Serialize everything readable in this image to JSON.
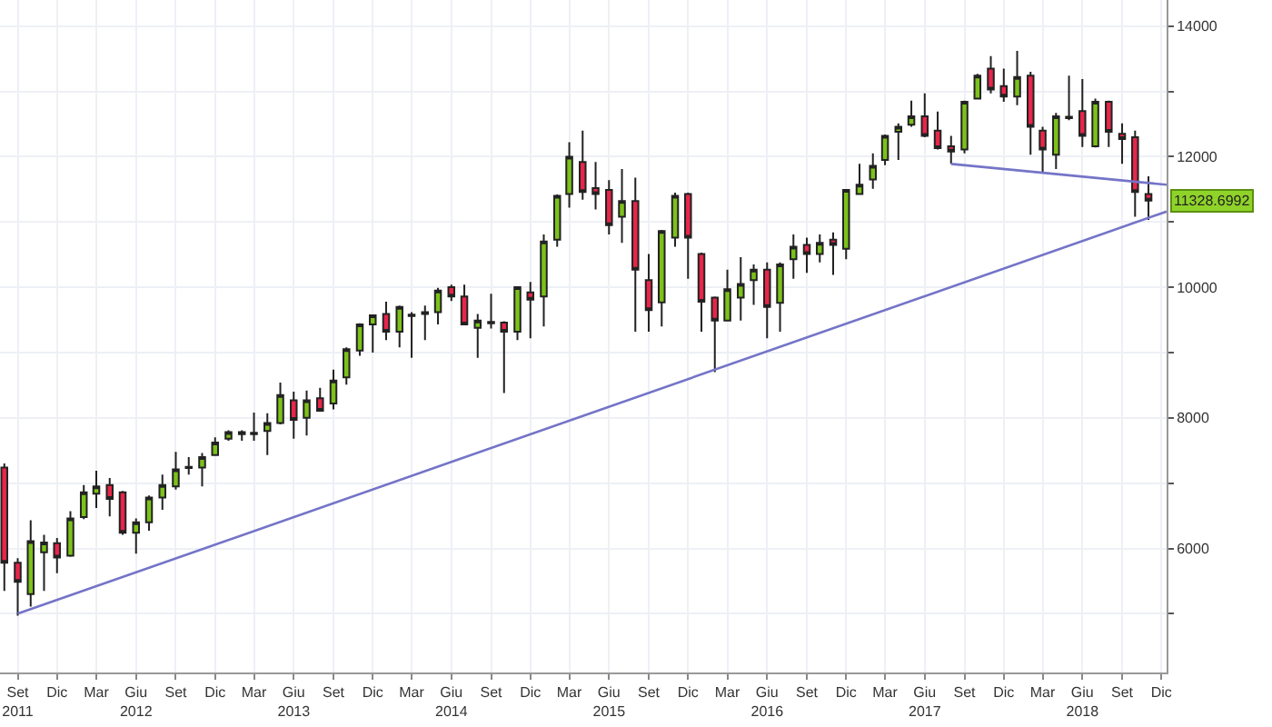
{
  "chart_data": {
    "type": "candlestick",
    "x": [
      "2011-08",
      "2011-09",
      "2011-10",
      "2011-11",
      "2011-12",
      "2012-01",
      "2012-02",
      "2012-03",
      "2012-04",
      "2012-05",
      "2012-06",
      "2012-07",
      "2012-08",
      "2012-09",
      "2012-10",
      "2012-11",
      "2012-12",
      "2013-01",
      "2013-02",
      "2013-03",
      "2013-04",
      "2013-05",
      "2013-06",
      "2013-07",
      "2013-08",
      "2013-09",
      "2013-10",
      "2013-11",
      "2013-12",
      "2014-01",
      "2014-02",
      "2014-03",
      "2014-04",
      "2014-05",
      "2014-06",
      "2014-07",
      "2014-08",
      "2014-09",
      "2014-10",
      "2014-11",
      "2014-12",
      "2015-01",
      "2015-02",
      "2015-03",
      "2015-04",
      "2015-05",
      "2015-06",
      "2015-07",
      "2015-08",
      "2015-09",
      "2015-10",
      "2015-11",
      "2015-12",
      "2016-01",
      "2016-02",
      "2016-03",
      "2016-04",
      "2016-05",
      "2016-06",
      "2016-07",
      "2016-08",
      "2016-09",
      "2016-10",
      "2016-11",
      "2016-12",
      "2017-01",
      "2017-02",
      "2017-03",
      "2017-04",
      "2017-05",
      "2017-06",
      "2017-07",
      "2017-08",
      "2017-09",
      "2017-10",
      "2017-11",
      "2017-12",
      "2018-01",
      "2018-02",
      "2018-03",
      "2018-04",
      "2018-05",
      "2018-06",
      "2018-07",
      "2018-08",
      "2018-09",
      "2018-10",
      "2018-11"
    ],
    "ohlc": [
      [
        7240,
        7300,
        5350,
        5780
      ],
      [
        5780,
        5850,
        4970,
        5490
      ],
      [
        5300,
        6430,
        5110,
        6110
      ],
      [
        5940,
        6210,
        5350,
        6090
      ],
      [
        6080,
        6160,
        5620,
        5860
      ],
      [
        5890,
        6570,
        5870,
        6460
      ],
      [
        6480,
        6970,
        6450,
        6860
      ],
      [
        6840,
        7190,
        6620,
        6950
      ],
      [
        6970,
        7080,
        6490,
        6760
      ],
      [
        6860,
        6880,
        6210,
        6240
      ],
      [
        6240,
        6460,
        5920,
        6400
      ],
      [
        6400,
        6810,
        6270,
        6780
      ],
      [
        6780,
        7130,
        6590,
        6970
      ],
      [
        6950,
        7480,
        6900,
        7210
      ],
      [
        7230,
        7400,
        7130,
        7250
      ],
      [
        7240,
        7460,
        6950,
        7400
      ],
      [
        7430,
        7700,
        7420,
        7620
      ],
      [
        7680,
        7810,
        7650,
        7780
      ],
      [
        7780,
        7810,
        7650,
        7750
      ],
      [
        7750,
        8080,
        7650,
        7770
      ],
      [
        7800,
        8070,
        7430,
        7920
      ],
      [
        7920,
        8540,
        7900,
        8350
      ],
      [
        8270,
        8400,
        7680,
        7970
      ],
      [
        8000,
        8420,
        7730,
        8270
      ],
      [
        8300,
        8460,
        8100,
        8110
      ],
      [
        8220,
        8740,
        8130,
        8570
      ],
      [
        8620,
        9080,
        8510,
        9050
      ],
      [
        9030,
        9450,
        8950,
        9430
      ],
      [
        9430,
        9580,
        9000,
        9570
      ],
      [
        9590,
        9780,
        9190,
        9320
      ],
      [
        9320,
        9720,
        9080,
        9700
      ],
      [
        9560,
        9620,
        8920,
        9580
      ],
      [
        9590,
        9720,
        9190,
        9620
      ],
      [
        9620,
        9990,
        9430,
        9950
      ],
      [
        10000,
        10040,
        9790,
        9860
      ],
      [
        9860,
        10040,
        9430,
        9430
      ],
      [
        9380,
        9590,
        8920,
        9490
      ],
      [
        9470,
        9900,
        9370,
        9450
      ],
      [
        9460,
        9480,
        8380,
        9320
      ],
      [
        9320,
        10010,
        9190,
        10000
      ],
      [
        9920,
        10080,
        9220,
        9810
      ],
      [
        9860,
        10810,
        9400,
        10700
      ],
      [
        10730,
        11420,
        10620,
        11400
      ],
      [
        11430,
        12220,
        11220,
        12000
      ],
      [
        11920,
        12400,
        11340,
        11460
      ],
      [
        11520,
        11920,
        11190,
        11430
      ],
      [
        11490,
        11640,
        10810,
        10950
      ],
      [
        11080,
        11810,
        10680,
        11320
      ],
      [
        11320,
        11680,
        9320,
        10270
      ],
      [
        10110,
        10510,
        9320,
        9650
      ],
      [
        9770,
        10880,
        9400,
        10860
      ],
      [
        10760,
        11450,
        10620,
        11400
      ],
      [
        11430,
        11450,
        10130,
        10760
      ],
      [
        10510,
        10530,
        9320,
        9780
      ],
      [
        9840,
        9860,
        8700,
        9490
      ],
      [
        9490,
        10270,
        9480,
        9970
      ],
      [
        9840,
        10460,
        9490,
        10050
      ],
      [
        10110,
        10350,
        9730,
        10270
      ],
      [
        10270,
        10380,
        9220,
        9700
      ],
      [
        9760,
        10380,
        9320,
        10350
      ],
      [
        10430,
        10810,
        10130,
        10620
      ],
      [
        10650,
        10760,
        10220,
        10510
      ],
      [
        10510,
        10810,
        10380,
        10680
      ],
      [
        10730,
        10840,
        10190,
        10650
      ],
      [
        10590,
        11500,
        10430,
        11490
      ],
      [
        11430,
        11890,
        11420,
        11570
      ],
      [
        11650,
        12050,
        11510,
        11860
      ],
      [
        11950,
        12340,
        11870,
        12320
      ],
      [
        12380,
        12510,
        11950,
        12460
      ],
      [
        12490,
        12860,
        12460,
        12620
      ],
      [
        12620,
        12970,
        12300,
        12320
      ],
      [
        12400,
        12690,
        12110,
        12130
      ],
      [
        12160,
        12320,
        11890,
        12080
      ],
      [
        12110,
        12860,
        12050,
        12840
      ],
      [
        12890,
        13270,
        12880,
        13240
      ],
      [
        13350,
        13540,
        12970,
        13030
      ],
      [
        13080,
        13350,
        12840,
        12920
      ],
      [
        12920,
        13620,
        12790,
        13220
      ],
      [
        13240,
        13300,
        12030,
        12460
      ],
      [
        12400,
        12460,
        11760,
        12110
      ],
      [
        12030,
        12670,
        11810,
        12620
      ],
      [
        12610,
        13240,
        12560,
        12590
      ],
      [
        12700,
        13190,
        12150,
        12320
      ],
      [
        12160,
        12890,
        12140,
        12840
      ],
      [
        12840,
        12860,
        12150,
        12380
      ],
      [
        12350,
        12510,
        11890,
        12270
      ],
      [
        12300,
        12400,
        11080,
        11460
      ],
      [
        11430,
        11700,
        11030,
        11328.6992
      ]
    ],
    "series": [
      {
        "type": "line",
        "color": "#7474c8",
        "x": [
          "2011-09",
          "2018-12-13"
        ],
        "values": [
          5000,
          11160
        ]
      },
      {
        "type": "line",
        "color": "#7474c8",
        "x": [
          "2017-08",
          "2018-12-13"
        ],
        "values": [
          11890,
          11570
        ]
      }
    ],
    "xlim": [
      "2011-07-22",
      "2018-12-13"
    ],
    "xticks": [
      {
        "value": "2011-09",
        "label": "Set\n2011"
      },
      {
        "value": "2011-12",
        "label": "Dic"
      },
      {
        "value": "2012-03",
        "label": "Mar"
      },
      {
        "value": "2012-06",
        "label": "Giu\n2012"
      },
      {
        "value": "2012-09",
        "label": "Set"
      },
      {
        "value": "2012-12",
        "label": "Dic"
      },
      {
        "value": "2013-03",
        "label": "Mar"
      },
      {
        "value": "2013-06",
        "label": "Giu\n2013"
      },
      {
        "value": "2013-09",
        "label": "Set"
      },
      {
        "value": "2013-12",
        "label": "Dic"
      },
      {
        "value": "2014-03",
        "label": "Mar"
      },
      {
        "value": "2014-06",
        "label": "Giu\n2014"
      },
      {
        "value": "2014-09",
        "label": "Set"
      },
      {
        "value": "2014-12",
        "label": "Dic"
      },
      {
        "value": "2015-03",
        "label": "Mar"
      },
      {
        "value": "2015-06",
        "label": "Giu\n2015"
      },
      {
        "value": "2015-09",
        "label": "Set"
      },
      {
        "value": "2015-12",
        "label": "Dic"
      },
      {
        "value": "2016-03",
        "label": "Mar"
      },
      {
        "value": "2016-06",
        "label": "Giu\n2016"
      },
      {
        "value": "2016-09",
        "label": "Set"
      },
      {
        "value": "2016-12",
        "label": "Dic"
      },
      {
        "value": "2017-03",
        "label": "Mar"
      },
      {
        "value": "2017-06",
        "label": "Giu\n2017"
      },
      {
        "value": "2017-09",
        "label": "Set"
      },
      {
        "value": "2017-12",
        "label": "Dic"
      },
      {
        "value": "2018-03",
        "label": "Mar"
      },
      {
        "value": "2018-06",
        "label": "Giu\n2018"
      },
      {
        "value": "2018-09",
        "label": "Set"
      },
      {
        "value": "2018-12",
        "label": "Dic"
      }
    ],
    "ylim": [
      4100,
      14400
    ],
    "yticks": [
      {
        "value": 5000,
        "label": null
      },
      6000,
      {
        "value": 7000,
        "label": null
      },
      8000,
      {
        "value": 9000,
        "label": null
      },
      10000,
      {
        "value": 11000,
        "label": null
      },
      12000,
      {
        "value": 13000,
        "label": null
      },
      14000
    ],
    "grid": true,
    "annotations": [
      "11328.6992"
    ]
  }
}
